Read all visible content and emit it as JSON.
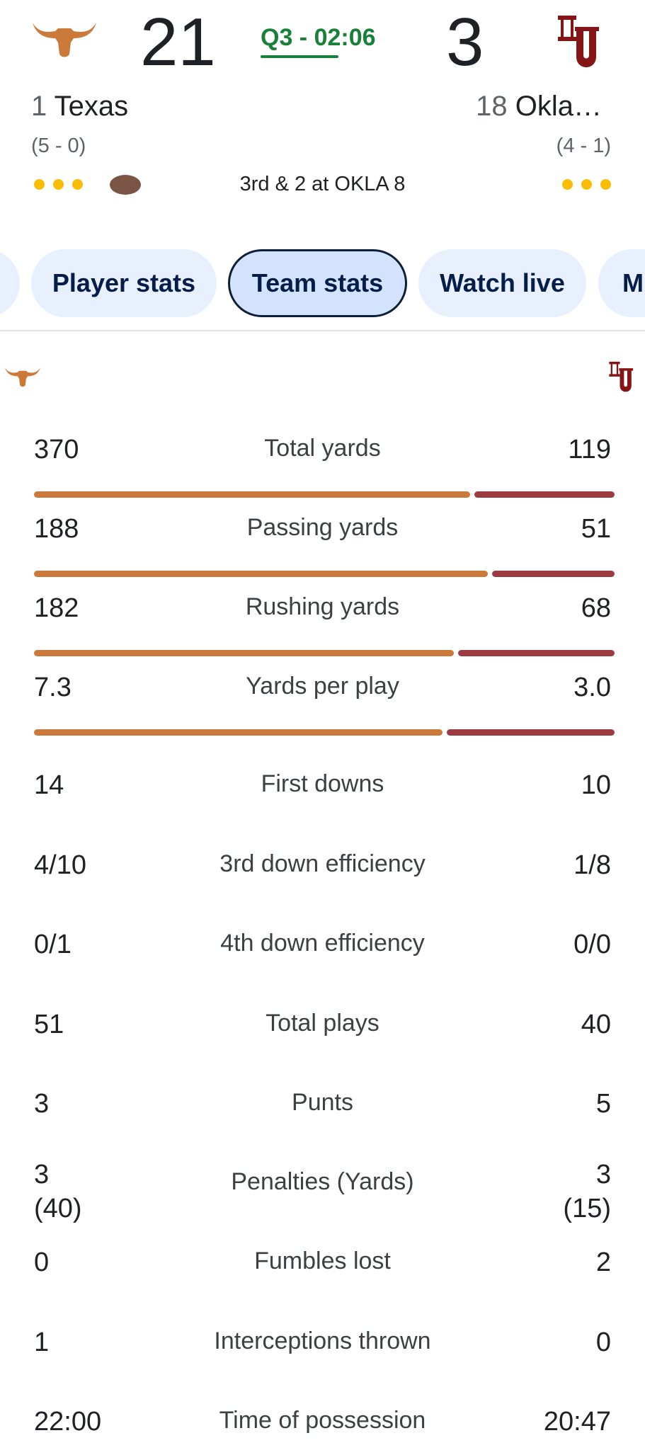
{
  "scoreboard": {
    "home": {
      "rank": "1",
      "name": "Texas",
      "record": "(5 - 0)",
      "score": "21",
      "logo_icon": "longhorn-icon",
      "color": "#cc7a3a"
    },
    "away": {
      "rank": "18",
      "name": "Okla…",
      "record": "(4 - 1)",
      "score": "3",
      "logo_icon": "ou-logo-icon",
      "color": "#841617"
    },
    "clock": "Q3 - 02:06",
    "situation": "3rd & 2 at OKLA 8",
    "possession_icon": "football-icon",
    "timeout_color": "#fbbc04"
  },
  "chips": [
    {
      "label": ""
    },
    {
      "label": "Player stats"
    },
    {
      "label": "Team stats",
      "active": true
    },
    {
      "label": "Watch live"
    },
    {
      "label": "M"
    }
  ],
  "stats": [
    {
      "label": "Total yards",
      "home": "370",
      "away": "119",
      "home_share": 0.757
    },
    {
      "label": "Passing yards",
      "home": "188",
      "away": "51",
      "home_share": 0.787
    },
    {
      "label": "Rushing yards",
      "home": "182",
      "away": "68",
      "home_share": 0.728
    },
    {
      "label": "Yards per play",
      "home": "7.3",
      "away": "3.0",
      "home_share": 0.709
    },
    {
      "label": "First downs",
      "home": "14",
      "away": "10"
    },
    {
      "label": "3rd down efficiency",
      "home": "4/10",
      "away": "1/8"
    },
    {
      "label": "4th down efficiency",
      "home": "0/1",
      "away": "0/0"
    },
    {
      "label": "Total plays",
      "home": "51",
      "away": "40"
    },
    {
      "label": "Punts",
      "home": "3",
      "away": "5"
    },
    {
      "label": "Penalties (Yards)",
      "home": "3\n(40)",
      "away": "3\n(15)"
    },
    {
      "label": "Fumbles lost",
      "home": "0",
      "away": "2"
    },
    {
      "label": "Interceptions thrown",
      "home": "1",
      "away": "0"
    },
    {
      "label": "Time of possession",
      "home": "22:00",
      "away": "20:47"
    }
  ]
}
